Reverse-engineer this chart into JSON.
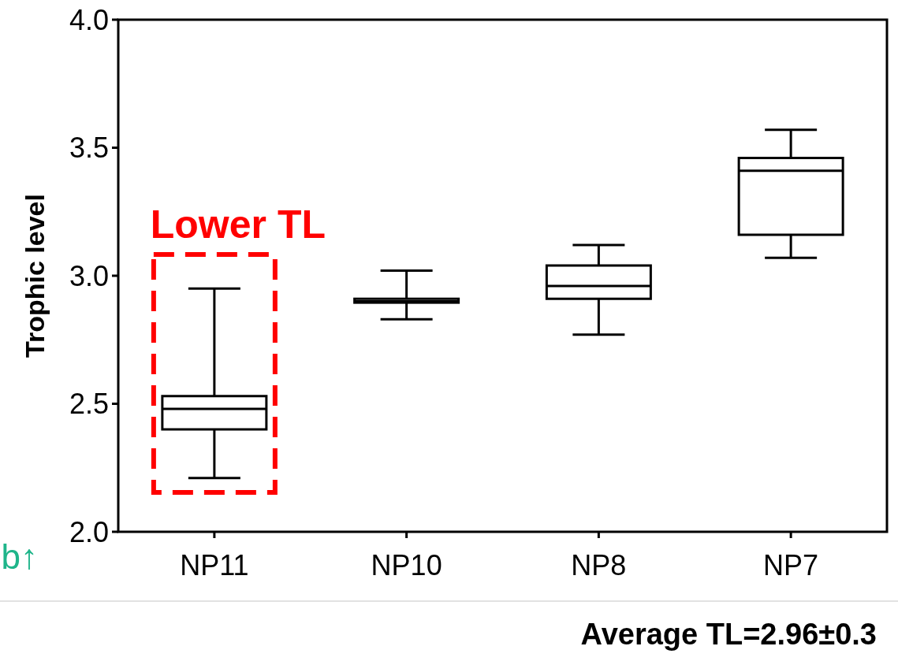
{
  "chart_data": {
    "type": "box",
    "ylabel": "Trophic level",
    "categories": [
      "NP11",
      "NP10",
      "NP8",
      "NP7"
    ],
    "boxes": [
      {
        "low": 2.21,
        "q1": 2.4,
        "median": 2.48,
        "q3": 2.53,
        "high": 2.95
      },
      {
        "low": 2.83,
        "q1": 2.895,
        "median": 2.9,
        "q3": 2.91,
        "high": 3.02
      },
      {
        "low": 2.77,
        "q1": 2.91,
        "median": 2.96,
        "q3": 3.04,
        "high": 3.12
      },
      {
        "low": 3.07,
        "q1": 3.16,
        "median": 3.41,
        "q3": 3.46,
        "high": 3.57
      }
    ],
    "color": "#000000",
    "ylim": [
      2.0,
      4.0
    ],
    "yticks": [
      {
        "value": 2,
        "label": "2.0"
      },
      {
        "value": 2.5,
        "label": "2.5"
      },
      {
        "value": 3,
        "label": "3.0"
      },
      {
        "value": 3.5,
        "label": "3.5"
      },
      {
        "value": 4,
        "label": "4.0"
      }
    ],
    "grid": false,
    "annotations": [
      "Lower TL",
      "b↑",
      "Average TL=2.96±0.3"
    ]
  }
}
